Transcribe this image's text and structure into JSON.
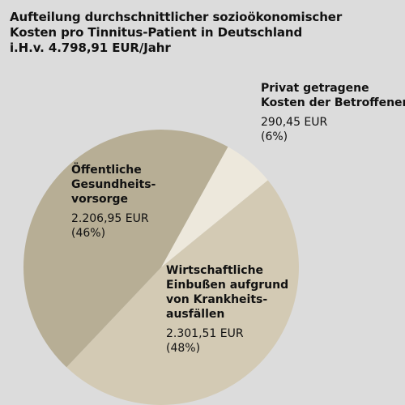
{
  "header": {
    "title_lines": [
      "Aufteilung durchschnittlicher sozioökonomischer",
      "Kosten pro Tinnitus-Patient in Deutschland",
      "i.H.v. 4.798,91 EUR/Jahr"
    ]
  },
  "chart_data": {
    "type": "pie",
    "title": "Aufteilung durchschnittlicher sozioökonomischer Kosten pro Tinnitus-Patient in Deutschland i.H.v. 4.798,91 EUR/Jahr",
    "unit": "EUR",
    "slices": [
      {
        "label_lines": [
          "Privat getragene",
          "Kosten der Betroffenen"
        ],
        "value": 290.45,
        "value_text": "290,45 EUR",
        "percent": 6,
        "percent_text": "(6%)",
        "color": "#ede8dc"
      },
      {
        "label_lines": [
          "Wirtschaftliche",
          "Einbußen aufgrund",
          "von Krankheits-",
          "ausfällen"
        ],
        "value": 2301.51,
        "value_text": "2.301,51 EUR",
        "percent": 48,
        "percent_text": "(48%)",
        "color": "#d3cab4"
      },
      {
        "label_lines": [
          "Öffentliche",
          "Gesundheits-",
          "vorsorge"
        ],
        "value": 2206.95,
        "value_text": "2.206,95 EUR",
        "percent": 46,
        "percent_text": "(46%)",
        "color": "#b7ae95"
      }
    ]
  }
}
